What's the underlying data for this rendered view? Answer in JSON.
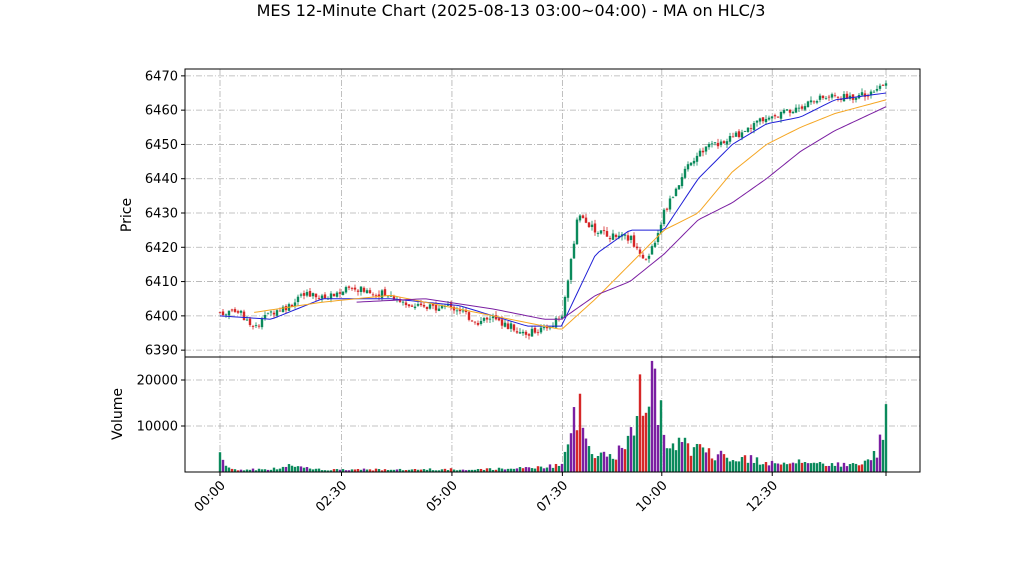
{
  "chart_data": {
    "type": "candlestick",
    "title": "MES 12-Minute Chart (2025-08-13 03:00~04:00) - MA on HLC/3",
    "price_panel": {
      "ylabel": "Price",
      "ylim": [
        6388,
        6472
      ],
      "yticks": [
        6390,
        6400,
        6410,
        6420,
        6430,
        6440,
        6450,
        6460,
        6470
      ],
      "close_anchors": [
        [
          0,
          6401
        ],
        [
          1,
          6402
        ],
        [
          2,
          6396
        ],
        [
          3,
          6401
        ],
        [
          4,
          6403
        ],
        [
          5,
          6406
        ],
        [
          6,
          6405
        ],
        [
          7,
          6407
        ],
        [
          8,
          6408
        ],
        [
          9,
          6407
        ],
        [
          10,
          6406
        ],
        [
          11,
          6403
        ],
        [
          12,
          6402
        ],
        [
          13,
          6403
        ],
        [
          14,
          6402
        ],
        [
          15,
          6398
        ],
        [
          16,
          6399
        ],
        [
          17,
          6397
        ],
        [
          18,
          6395
        ],
        [
          19,
          6396
        ],
        [
          20,
          6400
        ],
        [
          21,
          6430
        ],
        [
          22,
          6425
        ],
        [
          23,
          6423
        ],
        [
          24,
          6423
        ],
        [
          25,
          6415
        ],
        [
          26,
          6430
        ],
        [
          27,
          6440
        ],
        [
          28,
          6448
        ],
        [
          29,
          6450
        ],
        [
          30,
          6452
        ],
        [
          31,
          6455
        ],
        [
          32,
          6458
        ],
        [
          33,
          6459
        ],
        [
          34,
          6461
        ],
        [
          35,
          6463
        ],
        [
          36,
          6464
        ],
        [
          37,
          6464
        ],
        [
          38,
          6465
        ],
        [
          39,
          6467
        ]
      ],
      "candle_colors": {
        "up": "#0b8a5c",
        "down": "#d62728"
      },
      "moving_averages": [
        {
          "color": "#1f1fd6",
          "short": 6,
          "anchors": [
            [
              0,
              6400
            ],
            [
              3,
              6399
            ],
            [
              6,
              6405
            ],
            [
              10,
              6405
            ],
            [
              14,
              6403
            ],
            [
              18,
              6397
            ],
            [
              20,
              6397
            ],
            [
              22,
              6418
            ],
            [
              24,
              6425
            ],
            [
              26,
              6425
            ],
            [
              28,
              6440
            ],
            [
              30,
              6450
            ],
            [
              32,
              6456
            ],
            [
              34,
              6458
            ],
            [
              36,
              6463
            ],
            [
              39,
              6465
            ]
          ]
        },
        {
          "color": "#f5a623",
          "short": 12,
          "anchors": [
            [
              2,
              6401
            ],
            [
              6,
              6404
            ],
            [
              10,
              6406
            ],
            [
              14,
              6402
            ],
            [
              18,
              6398
            ],
            [
              20,
              6396
            ],
            [
              22,
              6405
            ],
            [
              24,
              6415
            ],
            [
              26,
              6425
            ],
            [
              28,
              6430
            ],
            [
              30,
              6442
            ],
            [
              32,
              6450
            ],
            [
              34,
              6455
            ],
            [
              36,
              6459
            ],
            [
              39,
              6463
            ]
          ]
        },
        {
          "color": "#7b1fa2",
          "short": 24,
          "anchors": [
            [
              8,
              6404
            ],
            [
              12,
              6405
            ],
            [
              16,
              6402
            ],
            [
              19,
              6399
            ],
            [
              20,
              6399
            ],
            [
              22,
              6406
            ],
            [
              24,
              6410
            ],
            [
              26,
              6418
            ],
            [
              28,
              6428
            ],
            [
              30,
              6433
            ],
            [
              32,
              6440
            ],
            [
              34,
              6448
            ],
            [
              36,
              6454
            ],
            [
              39,
              6461
            ]
          ]
        }
      ]
    },
    "volume_panel": {
      "ylabel": "Volume",
      "ylim": [
        0,
        25000
      ],
      "yticks": [
        10000,
        20000
      ],
      "ytick_labels": [
        "10000",
        "20000"
      ],
      "anchors": [
        [
          0,
          5000
        ],
        [
          0.5,
          800
        ],
        [
          1,
          600
        ],
        [
          3,
          700
        ],
        [
          4,
          1500
        ],
        [
          6,
          600
        ],
        [
          10,
          600
        ],
        [
          15,
          700
        ],
        [
          18,
          1000
        ],
        [
          19,
          1300
        ],
        [
          20,
          1500
        ],
        [
          21,
          16000
        ],
        [
          21.5,
          6000
        ],
        [
          22,
          3500
        ],
        [
          23,
          4000
        ],
        [
          24,
          8000
        ],
        [
          24.5,
          16500
        ],
        [
          25,
          24000
        ],
        [
          25.5,
          19000
        ],
        [
          26,
          10000
        ],
        [
          27,
          6000
        ],
        [
          28,
          6000
        ],
        [
          29,
          4000
        ],
        [
          30,
          3500
        ],
        [
          31,
          3000
        ],
        [
          32,
          2500
        ],
        [
          33,
          2000
        ],
        [
          34,
          2500
        ],
        [
          35,
          2000
        ],
        [
          36,
          2000
        ],
        [
          37,
          2000
        ],
        [
          38,
          3500
        ],
        [
          38.5,
          5000
        ],
        [
          39,
          13500
        ]
      ]
    },
    "x_axis": {
      "tick_labels": [
        "00:00",
        "02:30",
        "05:00",
        "07:30",
        "10:00",
        "12:30"
      ],
      "tick_positions": [
        0,
        5,
        10,
        15,
        20,
        25
      ],
      "tick_stretch": [
        0,
        5.5,
        10.5,
        15.5,
        20,
        25
      ],
      "n_units": 39
    }
  }
}
